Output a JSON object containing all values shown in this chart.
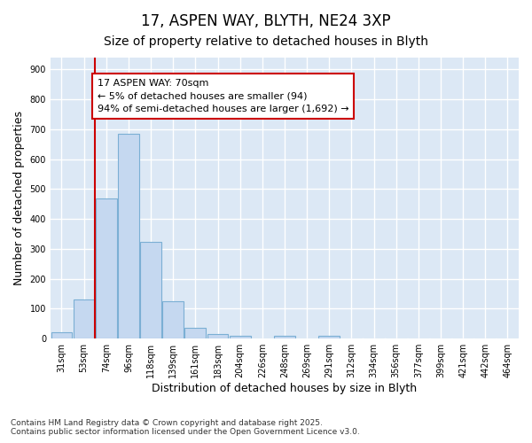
{
  "title1": "17, ASPEN WAY, BLYTH, NE24 3XP",
  "title2": "Size of property relative to detached houses in Blyth",
  "xlabel": "Distribution of detached houses by size in Blyth",
  "ylabel": "Number of detached properties",
  "categories": [
    "31sqm",
    "53sqm",
    "74sqm",
    "96sqm",
    "118sqm",
    "139sqm",
    "161sqm",
    "183sqm",
    "204sqm",
    "226sqm",
    "248sqm",
    "269sqm",
    "291sqm",
    "312sqm",
    "334sqm",
    "356sqm",
    "377sqm",
    "399sqm",
    "421sqm",
    "442sqm",
    "464sqm"
  ],
  "values": [
    20,
    130,
    470,
    685,
    325,
    125,
    35,
    15,
    10,
    0,
    10,
    0,
    10,
    0,
    0,
    0,
    0,
    0,
    0,
    0,
    0
  ],
  "bar_color": "#c5d8f0",
  "bar_edge_color": "#7bafd4",
  "red_line_x": 1.5,
  "annotation_text": "17 ASPEN WAY: 70sqm\n← 5% of detached houses are smaller (94)\n94% of semi-detached houses are larger (1,692) →",
  "annotation_box_color": "#ffffff",
  "annotation_box_edge": "#cc0000",
  "red_line_color": "#cc0000",
  "fig_background_color": "#ffffff",
  "plot_background_color": "#dce8f5",
  "grid_color": "#ffffff",
  "ylim": [
    0,
    940
  ],
  "yticks": [
    0,
    100,
    200,
    300,
    400,
    500,
    600,
    700,
    800,
    900
  ],
  "footer1": "Contains HM Land Registry data © Crown copyright and database right 2025.",
  "footer2": "Contains public sector information licensed under the Open Government Licence v3.0.",
  "title1_fontsize": 12,
  "title2_fontsize": 10,
  "tick_fontsize": 7,
  "label_fontsize": 9,
  "annotation_fontsize": 8
}
